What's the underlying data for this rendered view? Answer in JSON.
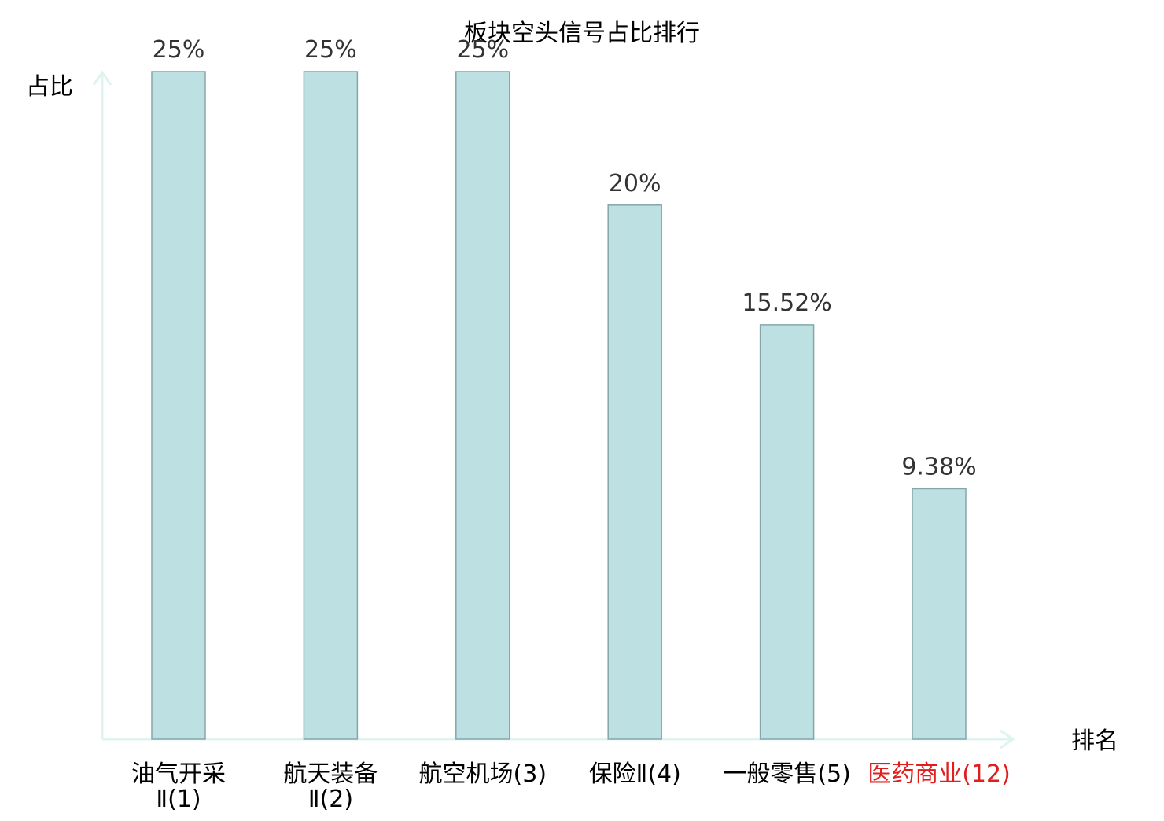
{
  "chart_data": {
    "type": "bar",
    "title": "板块空头信号占比排行",
    "ylabel": "占比",
    "xlabel": "排名",
    "ylim": [
      0,
      25
    ],
    "grid": false,
    "categories": [
      {
        "lines": [
          "油气开采",
          "Ⅱ(1)"
        ],
        "highlight": false
      },
      {
        "lines": [
          "航天装备",
          "Ⅱ(2)"
        ],
        "highlight": false
      },
      {
        "lines": [
          "航空机场(3)"
        ],
        "highlight": false
      },
      {
        "lines": [
          "保险Ⅱ(4)"
        ],
        "highlight": false
      },
      {
        "lines": [
          "一般零售(5)"
        ],
        "highlight": false
      },
      {
        "lines": [
          "医药商业(12)"
        ],
        "highlight": true
      }
    ],
    "values": [
      25,
      25,
      25,
      20,
      15.52,
      9.38
    ],
    "value_labels": [
      "25%",
      "25%",
      "25%",
      "20%",
      "15.52%",
      "9.38%"
    ],
    "colors": {
      "bar_fill": "#bde0e3",
      "bar_stroke": "#86a6aa",
      "axis": "#dff3f1",
      "text": "#000000",
      "value_label": "#333333",
      "highlight": "#e01e1e"
    }
  }
}
